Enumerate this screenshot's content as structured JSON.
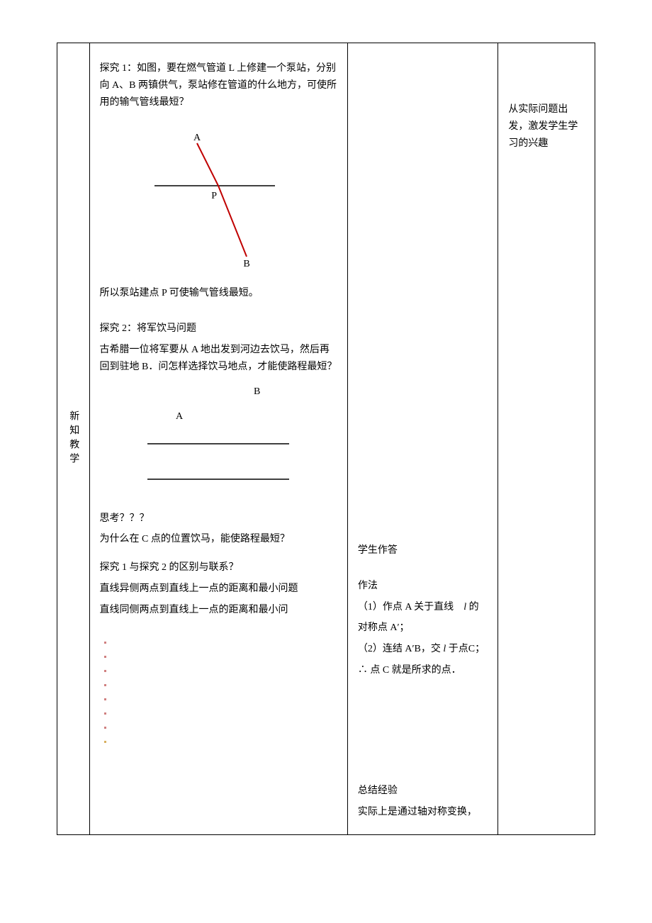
{
  "leftLabel": "新知教学",
  "content": {
    "explore1": {
      "title": "探究 1：如图，要在燃气管道 L 上修建一个泵站，分别向 A、B 两镇供气，泵站修在管道的什么地方，可使所用的输气管线最短？",
      "conclusion": "所以泵站建点 P 可使输气管线最短。"
    },
    "explore2": {
      "title": "探究 2：将军饮马问题",
      "desc": "古希腊一位将军要从 A 地出发到河边去饮马，然后再回到驻地 B．问怎样选择饮马地点，才能使路程最短？"
    },
    "think": {
      "heading": "思考？？？",
      "q1": "为什么在 C 点的位置饮马，能使路程最短？",
      "q2": "探究 1 与探究 2 的区别与联系？",
      "line1": "直线异侧两点到直线上一点的距离和最小问题",
      "line2": "直线同侧两点到直线上一点的距离和最小问"
    }
  },
  "student": {
    "answerLabel": "学生作答",
    "methodLabel": "作法",
    "step1_a": "（1）作点 A 关于直线",
    "step1_italic": "l",
    "step1_b": "的",
    "step1_c": "对称点 A′；",
    "step2_a": "（2）连结 A′B，交",
    "step2_italic": "l",
    "step2_b": "于点C；",
    "conclusion": "∴ 点 C 就是所求的点．",
    "summaryLabel": "总结经验",
    "summaryLine": "实际上是通过轴对称变换，"
  },
  "right": {
    "note": "从实际问题出发，激发学生学习的兴趣"
  },
  "diagram1": {
    "labelA": "A",
    "labelP": "P",
    "labelB": "B",
    "lineColor": "#000000",
    "redColor": "#c00000",
    "lineWidth": 1.5,
    "redWidth": 2
  },
  "diagram2": {
    "labelA": "A",
    "labelB": "B",
    "lineColor": "#000000",
    "lineWidth": 1.5
  },
  "dots": {
    "count": 8,
    "colors": [
      "#d08080",
      "#d08080",
      "#d08080",
      "#d08080",
      "#d08080",
      "#d08080",
      "#d08080",
      "#d8b060"
    ],
    "dotSize": 3,
    "spacing": 20
  }
}
